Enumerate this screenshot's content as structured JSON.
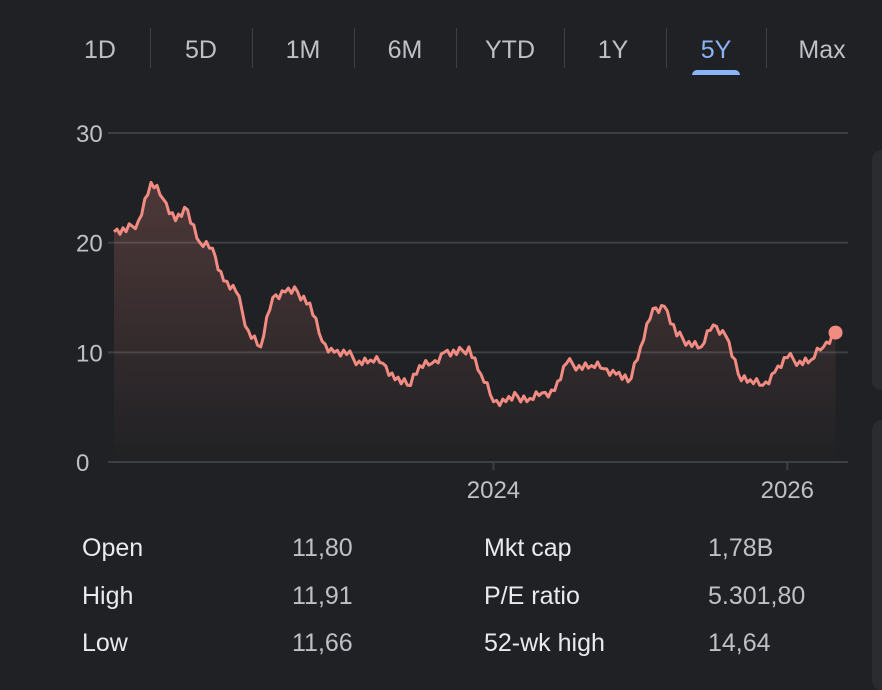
{
  "range_tabs": {
    "items": [
      "1D",
      "5D",
      "1M",
      "6M",
      "YTD",
      "1Y",
      "5Y",
      "Max"
    ],
    "selected": "5Y"
  },
  "colors": {
    "background": "#202124",
    "line": "#f28b82",
    "accent": "#8ab4f8",
    "grid": "#3c4043"
  },
  "chart_data": {
    "type": "line",
    "ylim": [
      0,
      30
    ],
    "y_ticks": [
      "0",
      "10",
      "20",
      "30"
    ],
    "x_tick_labels": [
      "2024",
      "2026"
    ],
    "x_tick_dates": [
      "2024-01-01",
      "2026-01-01"
    ],
    "xlim": [
      "2021-06-01",
      "2026-06-01"
    ],
    "grid": true,
    "series": [
      {
        "x": [
          "2021-06-01",
          "2021-07-01",
          "2021-08-01",
          "2021-09-01",
          "2021-10-01",
          "2021-11-01",
          "2021-12-01",
          "2022-01-01",
          "2022-02-01",
          "2022-03-01",
          "2022-04-01",
          "2022-05-01",
          "2022-06-01",
          "2022-07-01",
          "2022-08-01",
          "2022-09-01",
          "2022-10-01",
          "2022-11-01",
          "2022-12-01",
          "2023-01-01",
          "2023-02-01",
          "2023-03-01",
          "2023-04-01",
          "2023-05-01",
          "2023-06-01",
          "2023-07-01",
          "2023-08-01",
          "2023-09-01",
          "2023-10-01",
          "2023-11-01",
          "2023-12-01",
          "2024-01-01",
          "2024-02-01",
          "2024-03-01",
          "2024-04-01",
          "2024-05-01",
          "2024-06-01",
          "2024-07-01",
          "2024-08-01",
          "2024-09-01",
          "2024-10-01",
          "2024-11-01",
          "2024-12-01",
          "2025-01-01",
          "2025-02-01",
          "2025-03-01",
          "2025-04-01",
          "2025-05-01",
          "2025-06-01",
          "2025-07-01",
          "2025-08-01",
          "2025-09-01",
          "2025-10-01",
          "2025-11-01",
          "2025-12-01",
          "2026-01-01",
          "2026-02-01",
          "2026-03-01",
          "2026-04-01",
          "2026-05-01"
        ],
        "values": [
          21,
          21,
          22,
          25.5,
          24,
          22,
          23,
          20,
          19.5,
          16.5,
          15.5,
          12,
          10.5,
          15,
          15.5,
          15.5,
          14.5,
          11,
          10,
          9.8,
          9.2,
          9.3,
          9,
          7.5,
          7,
          8.8,
          9,
          10,
          9.8,
          10.5,
          8,
          5.5,
          5.5,
          6,
          5.8,
          6.3,
          6.5,
          9,
          8.8,
          8.8,
          8.5,
          8,
          7.3,
          10.5,
          14,
          14.2,
          11.5,
          11,
          10.5,
          12.5,
          11.5,
          8,
          7.5,
          7,
          8.2,
          9.5,
          9.2,
          9.3,
          10.5,
          11.8
        ]
      }
    ],
    "last_value": 11.8
  },
  "stats": {
    "left": [
      {
        "label": "Open",
        "value": "11,80"
      },
      {
        "label": "High",
        "value": "11,91"
      },
      {
        "label": "Low",
        "value": "11,66"
      }
    ],
    "right": [
      {
        "label": "Mkt cap",
        "value": "1,78B"
      },
      {
        "label": "P/E ratio",
        "value": "5.301,80"
      },
      {
        "label": "52-wk high",
        "value": "14,64"
      }
    ]
  }
}
